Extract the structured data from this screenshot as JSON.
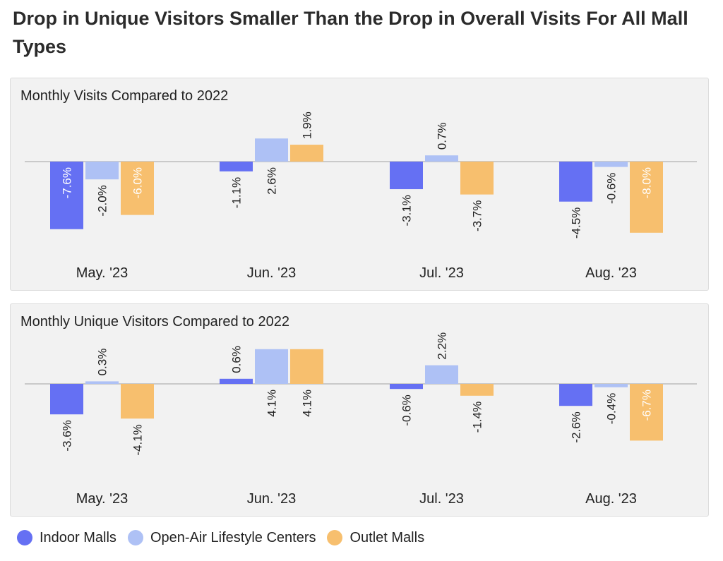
{
  "title": "Drop in Unique Visitors Smaller Than the Drop in Overall Visits For All Mall Types",
  "chart_data": [
    {
      "type": "bar",
      "title": "Monthly Visits Compared to 2022",
      "categories": [
        "May. '23",
        "Jun. '23",
        "Jul. '23",
        "Aug. '23"
      ],
      "series": [
        {
          "name": "Indoor Malls",
          "values": [
            -7.6,
            -1.1,
            -3.1,
            -4.5
          ],
          "labels": [
            "-7.6%",
            "-1.1%",
            "-3.1%",
            "-4.5%"
          ],
          "color": "#6570f3"
        },
        {
          "name": "Open-Air Lifestyle Centers",
          "values": [
            -2.0,
            2.6,
            0.7,
            -0.6
          ],
          "labels": [
            "-2.0%",
            "2.6%",
            "0.7%",
            "-0.6%"
          ],
          "color": "#aec1f5"
        },
        {
          "name": "Outlet Malls",
          "values": [
            -6.0,
            1.9,
            -3.7,
            -8.0
          ],
          "labels": [
            "-6.0%",
            "1.9%",
            "-3.7%",
            "-8.0%"
          ],
          "color": "#f7bf6e"
        }
      ],
      "ylim": [
        -8.0,
        2.7
      ]
    },
    {
      "type": "bar",
      "title": "Monthly Unique Visitors Compared to 2022",
      "categories": [
        "May. '23",
        "Jun. '23",
        "Jul. '23",
        "Aug. '23"
      ],
      "series": [
        {
          "name": "Indoor Malls",
          "values": [
            -3.6,
            0.6,
            -0.6,
            -2.6
          ],
          "labels": [
            "-3.6%",
            "0.6%",
            "-0.6%",
            "-2.6%"
          ],
          "color": "#6570f3"
        },
        {
          "name": "Open-Air Lifestyle Centers",
          "values": [
            0.3,
            4.1,
            2.2,
            -0.4
          ],
          "labels": [
            "0.3%",
            "4.1%",
            "2.2%",
            "-0.4%"
          ],
          "color": "#aec1f5"
        },
        {
          "name": "Outlet Malls",
          "values": [
            -4.1,
            4.1,
            -1.4,
            -6.7
          ],
          "labels": [
            "-4.1%",
            "4.1%",
            "-1.4%",
            "-6.7%"
          ],
          "color": "#f7bf6e"
        }
      ],
      "ylim": [
        -6.7,
        4.1
      ]
    }
  ],
  "legend": {
    "placement": "bottom-left",
    "items": [
      {
        "label": "Indoor Malls",
        "color": "#6570f3"
      },
      {
        "label": "Open-Air Lifestyle Centers",
        "color": "#aec1f5"
      },
      {
        "label": "Outlet Malls",
        "color": "#f7bf6e"
      }
    ]
  }
}
